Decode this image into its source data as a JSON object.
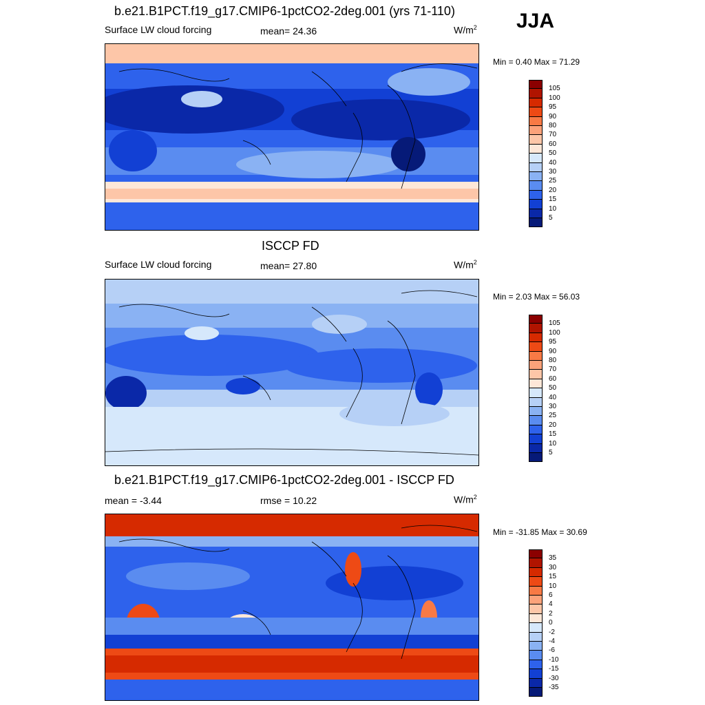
{
  "season": "JJA",
  "panels": [
    {
      "title": "b.e21.B1PCT.f19_g17.CMIP6-1pctCO2-2deg.001 (yrs 71-110)",
      "left_label": "Surface LW cloud forcing",
      "center_label": "mean=  24.36",
      "units": "W/m",
      "units_exp": "2",
      "minmax": "Min =   0.40 Max =  71.29",
      "scale": "abs"
    },
    {
      "title": "ISCCP FD",
      "left_label": "Surface LW cloud forcing",
      "center_label": "mean=  27.80",
      "units": "W/m",
      "units_exp": "2",
      "minmax": "Min =   2.03 Max =  56.03",
      "scale": "abs"
    },
    {
      "title": "b.e21.B1PCT.f19_g17.CMIP6-1pctCO2-2deg.001 - ISCCP FD",
      "left_label": "mean =  -3.44",
      "center_label": "rmse =  10.22",
      "units": "W/m",
      "units_exp": "2",
      "minmax": "Min = -31.85 Max =  30.69",
      "scale": "diff"
    }
  ],
  "colorbars": {
    "abs": {
      "ticks": [
        "105",
        "100",
        "95",
        "90",
        "80",
        "70",
        "60",
        "50",
        "40",
        "30",
        "25",
        "20",
        "15",
        "10",
        "5"
      ],
      "colors": [
        "#8b0000",
        "#b01400",
        "#d62a00",
        "#ee4a15",
        "#f87a45",
        "#fca27a",
        "#fdc6a8",
        "#fde7d8",
        "#d6e8fb",
        "#b6d0f6",
        "#8ab2f3",
        "#5a8cf0",
        "#2e62ec",
        "#1240d4",
        "#0a28a8",
        "#061a78"
      ]
    },
    "diff": {
      "ticks": [
        "35",
        "30",
        "15",
        "10",
        "6",
        "4",
        "2",
        "0",
        "-2",
        "-4",
        "-6",
        "-10",
        "-15",
        "-30",
        "-35"
      ],
      "colors": [
        "#8b0000",
        "#b01400",
        "#d62a00",
        "#ee4a15",
        "#f87a45",
        "#fca27a",
        "#fdc6a8",
        "#fde7d8",
        "#d6e8fb",
        "#b6d0f6",
        "#8ab2f3",
        "#5a8cf0",
        "#2e62ec",
        "#1240d4",
        "#0a28a8",
        "#061a78"
      ]
    }
  }
}
